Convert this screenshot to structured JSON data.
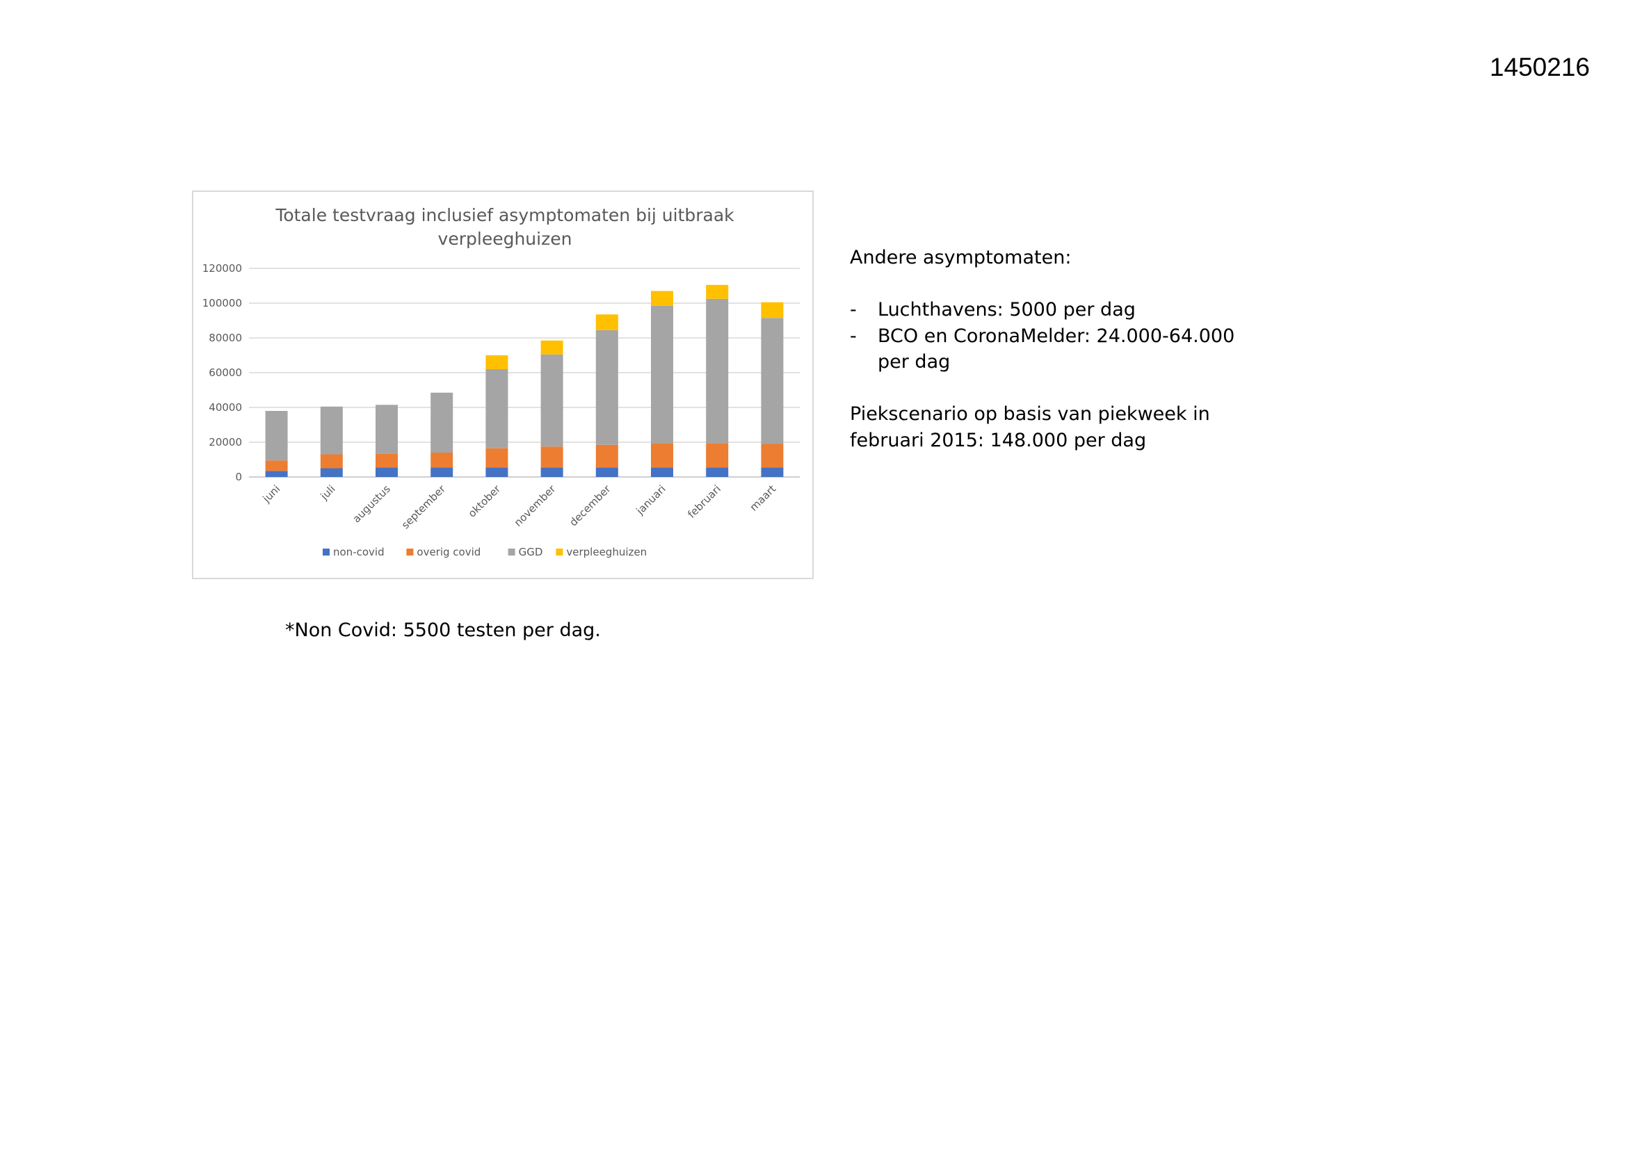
{
  "page": {
    "doc_number": "1450216",
    "notes": {
      "heading": "Andere asymptomaten:",
      "bullets": [
        "Luchthavens: 5000 per dag",
        "BCO en CoronaMelder: 24.000-64.000 per dag"
      ],
      "peak": "Piekscenario op basis van piekweek in februari 2015: 148.000 per dag"
    },
    "footnote": "*Non Covid: 5500 testen per dag."
  },
  "chart_data": {
    "type": "bar",
    "stacked": true,
    "title": "Totale testvraag inclusief asymptomaten bij uitbraak verpleeghuizen",
    "xlabel": "",
    "ylabel": "",
    "ylim": [
      0,
      120000
    ],
    "yticks": [
      "0",
      "20000",
      "40000",
      "60000",
      "80000",
      "100000",
      "120000"
    ],
    "grid": true,
    "legend": "bottom",
    "categories": [
      "juni",
      "juli",
      "augustus",
      "september",
      "oktober",
      "november",
      "december",
      "januari",
      "februari",
      "maart"
    ],
    "series": [
      {
        "name": "non-covid",
        "color": "#4472c4",
        "values": [
          3500,
          5000,
          5500,
          5500,
          5500,
          5500,
          5500,
          5500,
          5500,
          5500
        ]
      },
      {
        "name": "overig covid",
        "color": "#ed7d31",
        "values": [
          6000,
          8000,
          8000,
          8500,
          11000,
          12000,
          13000,
          14000,
          14000,
          13500
        ]
      },
      {
        "name": "GGD",
        "color": "#a5a5a5",
        "values": [
          28500,
          27500,
          28000,
          34500,
          45500,
          53000,
          66000,
          79000,
          83000,
          72500
        ]
      },
      {
        "name": "verpleeghuizen",
        "color": "#ffc000",
        "values": [
          0,
          0,
          0,
          0,
          8000,
          8000,
          9000,
          8500,
          8000,
          9000
        ]
      }
    ]
  }
}
